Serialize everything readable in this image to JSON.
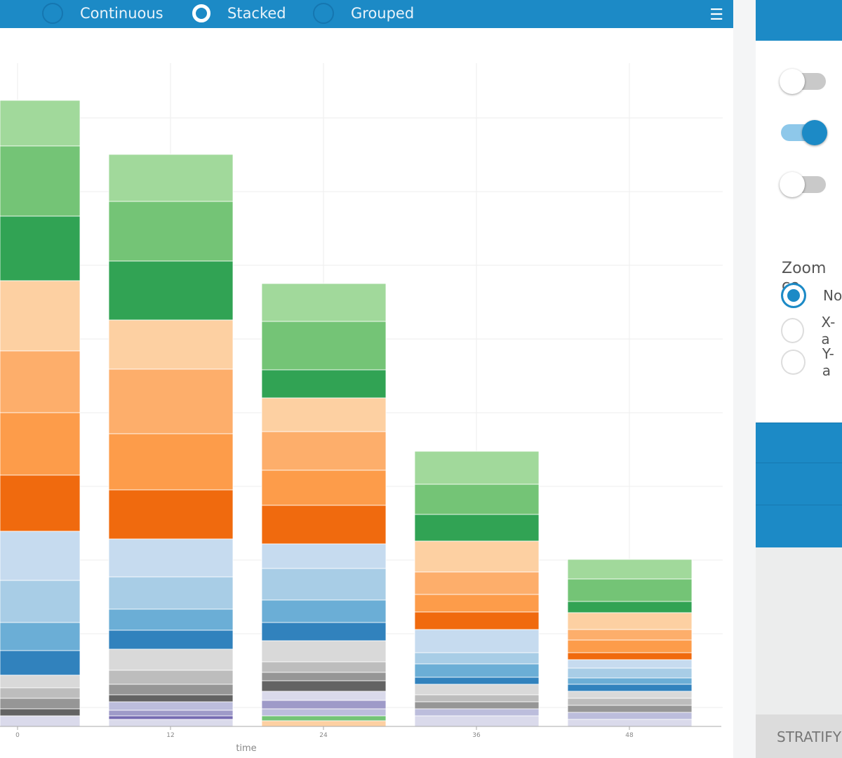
{
  "toolbar": {
    "options": [
      {
        "label": "Continuous",
        "selected": false
      },
      {
        "label": "Stacked",
        "selected": true
      },
      {
        "label": "Grouped",
        "selected": false
      }
    ],
    "menu_icon": "hamburger-menu-icon"
  },
  "side": {
    "toggles": [
      false,
      true,
      false
    ],
    "zoom_label": "Zoom co",
    "zoom_options": [
      {
        "label": "No",
        "selected": true
      },
      {
        "label": "X-a",
        "selected": false
      },
      {
        "label": "Y-a",
        "selected": false
      }
    ],
    "stratify_label": "STRATIFY"
  },
  "chart_data": {
    "type": "bar",
    "stacked": true,
    "xlabel": "time",
    "ylabel": "",
    "categories": [
      "0",
      "12",
      "24",
      "36",
      "48"
    ],
    "ylim": [
      0,
      94.5
    ],
    "grid": true,
    "segments_top_down": [
      [
        [
          6.5,
          "#a1d99b"
        ],
        [
          10.0,
          "#74c476"
        ],
        [
          9.2,
          "#31a354"
        ],
        [
          10.0,
          "#fdd0a2"
        ],
        [
          8.8,
          "#fdae6b"
        ],
        [
          8.9,
          "#fd9c4a"
        ],
        [
          8.0,
          "#f06a0e"
        ],
        [
          7.0,
          "#c6dbef"
        ],
        [
          6.0,
          "#a8cde6"
        ],
        [
          4.0,
          "#6baed6"
        ],
        [
          3.5,
          "#3182bd"
        ],
        [
          1.8,
          "#d9d9d9"
        ],
        [
          1.5,
          "#bdbdbd"
        ],
        [
          1.5,
          "#969696"
        ],
        [
          1.0,
          "#636363"
        ],
        [
          1.5,
          "#dadaeb"
        ]
      ],
      [
        [
          6.7,
          "#a1d99b"
        ],
        [
          8.5,
          "#74c476"
        ],
        [
          8.4,
          "#31a354"
        ],
        [
          7.0,
          "#fdd0a2"
        ],
        [
          9.2,
          "#fdae6b"
        ],
        [
          8.0,
          "#fd9c4a"
        ],
        [
          7.0,
          "#f06a0e"
        ],
        [
          5.4,
          "#c6dbef"
        ],
        [
          4.6,
          "#a8cde6"
        ],
        [
          3.0,
          "#6baed6"
        ],
        [
          2.7,
          "#3182bd"
        ],
        [
          3.0,
          "#d9d9d9"
        ],
        [
          2.0,
          "#bdbdbd"
        ],
        [
          1.5,
          "#969696"
        ],
        [
          1.0,
          "#636363"
        ],
        [
          1.2,
          "#bcbddc"
        ],
        [
          0.8,
          "#9e9ac8"
        ],
        [
          0.5,
          "#756bb1"
        ],
        [
          1.0,
          "#dadaeb"
        ]
      ],
      [
        [
          5.4,
          "#a1d99b"
        ],
        [
          6.9,
          "#74c476"
        ],
        [
          4.0,
          "#31a354"
        ],
        [
          4.8,
          "#fdd0a2"
        ],
        [
          5.5,
          "#fdae6b"
        ],
        [
          5.0,
          "#fd9c4a"
        ],
        [
          5.5,
          "#f06a0e"
        ],
        [
          3.5,
          "#c6dbef"
        ],
        [
          4.5,
          "#a8cde6"
        ],
        [
          3.2,
          "#6baed6"
        ],
        [
          2.6,
          "#3182bd"
        ],
        [
          3.0,
          "#d9d9d9"
        ],
        [
          1.5,
          "#bdbdbd"
        ],
        [
          1.2,
          "#969696"
        ],
        [
          1.5,
          "#636363"
        ],
        [
          1.3,
          "#dadaeb"
        ],
        [
          1.2,
          "#9e9ac8"
        ],
        [
          1.0,
          "#bcbddc"
        ],
        [
          0.7,
          "#74c476"
        ],
        [
          0.8,
          "#fdd0a2"
        ]
      ],
      [
        [
          4.7,
          "#a1d99b"
        ],
        [
          4.3,
          "#74c476"
        ],
        [
          3.8,
          "#31a354"
        ],
        [
          4.4,
          "#fdd0a2"
        ],
        [
          3.2,
          "#fdae6b"
        ],
        [
          2.5,
          "#fd9c4a"
        ],
        [
          2.5,
          "#f06a0e"
        ],
        [
          3.3,
          "#c6dbef"
        ],
        [
          1.6,
          "#a8cde6"
        ],
        [
          1.9,
          "#6baed6"
        ],
        [
          1.0,
          "#3182bd"
        ],
        [
          1.5,
          "#d9d9d9"
        ],
        [
          1.0,
          "#bdbdbd"
        ],
        [
          1.0,
          "#969696"
        ],
        [
          1.0,
          "#bcbddc"
        ],
        [
          1.5,
          "#dadaeb"
        ]
      ],
      [
        [
          2.8,
          "#a1d99b"
        ],
        [
          3.2,
          "#74c476"
        ],
        [
          1.6,
          "#31a354"
        ],
        [
          2.4,
          "#fdd0a2"
        ],
        [
          1.5,
          "#fdae6b"
        ],
        [
          1.8,
          "#fd9c4a"
        ],
        [
          1.0,
          "#f06a0e"
        ],
        [
          1.2,
          "#c6dbef"
        ],
        [
          1.4,
          "#a8cde6"
        ],
        [
          0.9,
          "#6baed6"
        ],
        [
          1.0,
          "#3182bd"
        ],
        [
          1.0,
          "#d9d9d9"
        ],
        [
          1.0,
          "#bdbdbd"
        ],
        [
          1.0,
          "#969696"
        ],
        [
          1.0,
          "#bcbddc"
        ],
        [
          1.0,
          "#dadaeb"
        ]
      ]
    ]
  }
}
